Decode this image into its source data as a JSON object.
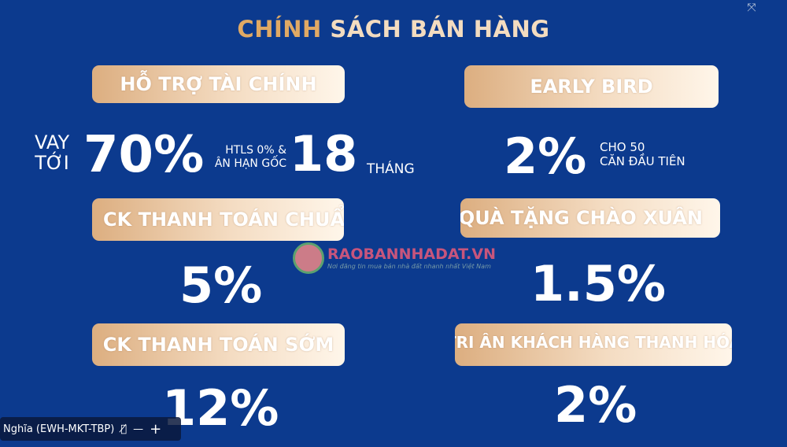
{
  "title": {
    "highlight": "CHÍNH",
    "rest": " SÁCH BÁN HÀNG"
  },
  "blocks": {
    "financial": {
      "label": "HỖ TRỢ TÀI CHÍNH",
      "prefix_line1": "VAY",
      "prefix_line2": "TỚI",
      "value": "70%",
      "note_line1": "HTLS 0% &",
      "note_line2": "ÂN HẠN GỐC",
      "months": "18",
      "months_unit": "THÁNG"
    },
    "early_bird": {
      "label": "EARLY BIRD",
      "value": "2%",
      "note_line1": "CHO 50",
      "note_line2": "CĂN ĐẦU TIÊN"
    },
    "standard_payment": {
      "label": "CK THANH TOÁN CHUẨN",
      "value": "5%"
    },
    "spring_gift": {
      "label": "QUÀ TẶNG CHÀO XUÂN",
      "value": "1.5%"
    },
    "early_payment": {
      "label": "CK THANH TOÁN SỚM",
      "value": "12%"
    },
    "thanh_hoa": {
      "label": "TRI ÂN KHÁCH HÀNG THANH HÓA",
      "value": "2%"
    }
  },
  "watermark": {
    "name": "RAOBANNHADAT.VN",
    "slogan": "Nơi đăng tin mua bán nhà đất nhanh nhất Việt Nam"
  },
  "participant": {
    "name": "Nghĩa (EWH-MKT-TBP)",
    "mic_icon": "mic-off-icon",
    "minimize": "—",
    "add": "+"
  },
  "expand_icon": "⤧"
}
